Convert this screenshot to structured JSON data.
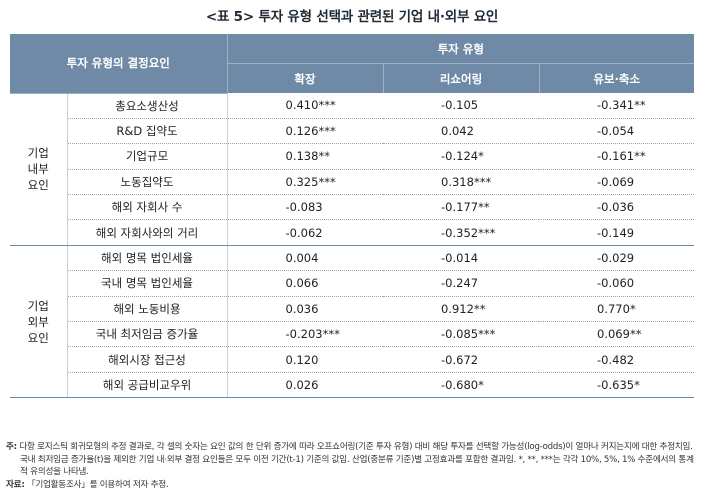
{
  "title": {
    "tag": "<표 5>",
    "text": "투자 유형 선택과 관련된 기업 내·외부 요인"
  },
  "header": {
    "factor_col": "투자 유형의 결정요인",
    "investment_type": "투자 유형",
    "types": [
      "확장",
      "리쇼어링",
      "유보·축소"
    ]
  },
  "groups": [
    {
      "name_lines": [
        "기업",
        "내부",
        "요인"
      ],
      "rows": [
        {
          "factor": "총요소생산성",
          "values": [
            "0.410***",
            "-0.105",
            "-0.341**"
          ]
        },
        {
          "factor": "R&D 집약도",
          "values": [
            "0.126***",
            "0.042",
            "-0.054"
          ]
        },
        {
          "factor": "기업규모",
          "values": [
            "0.138**",
            "-0.124*",
            "-0.161**"
          ]
        },
        {
          "factor": "노동집약도",
          "values": [
            "0.325***",
            "0.318***",
            "-0.069"
          ]
        },
        {
          "factor": "해외 자회사 수",
          "values": [
            "-0.083",
            "-0.177**",
            "-0.036"
          ]
        },
        {
          "factor": "해외 자회사와의 거리",
          "values": [
            "-0.062",
            "-0.352***",
            "-0.149"
          ]
        }
      ]
    },
    {
      "name_lines": [
        "기업",
        "외부",
        "요인"
      ],
      "rows": [
        {
          "factor": "해외 명목 법인세율",
          "values": [
            "0.004",
            "-0.014",
            "-0.029"
          ]
        },
        {
          "factor": "국내 명목 법인세율",
          "values": [
            "0.066",
            "-0.247",
            "-0.060"
          ]
        },
        {
          "factor": "해외 노동비용",
          "values": [
            "0.036",
            "0.912**",
            "0.770*"
          ]
        },
        {
          "factor": "국내 최저임금 증가율",
          "values": [
            "-0.203***",
            "-0.085***",
            "0.069**"
          ]
        },
        {
          "factor": "해외시장 접근성",
          "values": [
            "0.120",
            "-0.672",
            "-0.482"
          ]
        },
        {
          "factor": "해외 공급비교우위",
          "values": [
            "0.026",
            "-0.680*",
            "-0.635*"
          ]
        }
      ]
    }
  ],
  "note": {
    "label": "주:",
    "line1": "다항 로지스틱 회귀모형의 추정 결과로, 각 셀의 숫자는 요인 값의 한 단위 증가에 따라 오프쇼어링(기준 투자 유형) 대비 해당 투자를 선택할 가능성(log-odds)이 얼마나 커지는지에 대한 추정치임. 국내 최저임금 증가율(t)을 제외한 기업 내·외부 결정 요인들은 모두 이전 기간(t-1) 기준의 값임. 산업(중분류 기준)별 고정효과를 포함한 결과임. *, **, ***는 각각 10%, 5%, 1% 수준에서의 통계적 유의성을 나타냄.",
    "source_label": "자료:",
    "source_text": "「기업활동조사」를 이용하여 저자 추정."
  }
}
